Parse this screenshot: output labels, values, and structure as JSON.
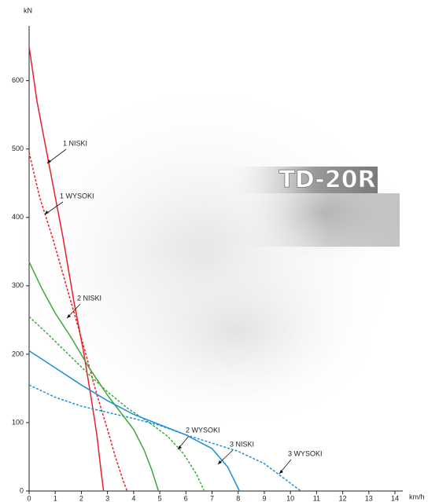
{
  "logo": "TD-20R",
  "chart_data": {
    "type": "line",
    "y_label": "kN",
    "x_label": "km/h",
    "xlim": [
      0,
      14.3
    ],
    "ylim": [
      0,
      680
    ],
    "xticks": [
      0,
      1,
      2,
      3,
      4,
      5,
      6,
      7,
      8,
      9,
      10,
      11,
      12,
      13,
      14
    ],
    "yticks": [
      0,
      100,
      200,
      300,
      400,
      500,
      600
    ],
    "series": [
      {
        "name": "1 NISKI",
        "color": "#e8202a",
        "dashed": false,
        "x": [
          0,
          0.3,
          0.8,
          1.3,
          1.7,
          2.1,
          2.4,
          2.6,
          2.75,
          2.85
        ],
        "values": [
          650,
          570,
          470,
          370,
          280,
          200,
          130,
          80,
          30,
          0
        ]
      },
      {
        "name": "1 WYSOKI",
        "color": "#e8202a",
        "dashed": true,
        "x": [
          0,
          0.4,
          0.9,
          1.5,
          2.1,
          2.6,
          3.0,
          3.3,
          3.6,
          3.75
        ],
        "values": [
          495,
          430,
          370,
          290,
          210,
          140,
          90,
          50,
          15,
          0
        ]
      },
      {
        "name": "2 NISKI",
        "color": "#3aa935",
        "dashed": false,
        "x": [
          0,
          0.5,
          1,
          1.6,
          2.3,
          3,
          3.5,
          4,
          4.4,
          4.7,
          4.95
        ],
        "values": [
          335,
          295,
          260,
          225,
          180,
          140,
          115,
          90,
          60,
          30,
          0
        ]
      },
      {
        "name": "2 WYSOKI",
        "color": "#3aa935",
        "dashed": true,
        "x": [
          0,
          0.7,
          1.5,
          2.3,
          3,
          3.8,
          4.6,
          5.3,
          5.9,
          6.4,
          6.7
        ],
        "values": [
          255,
          230,
          200,
          170,
          145,
          120,
          100,
          80,
          55,
          25,
          0
        ]
      },
      {
        "name": "3 NISKI",
        "color": "#1a8fd8",
        "dashed": false,
        "x": [
          0,
          1,
          2,
          3,
          4,
          5,
          6,
          7,
          7.6,
          8.05
        ],
        "values": [
          205,
          180,
          155,
          132,
          112,
          97,
          82,
          62,
          35,
          0
        ]
      },
      {
        "name": "3 WYSOKI",
        "color": "#1a8fd8",
        "dashed": true,
        "x": [
          0,
          1,
          2,
          3,
          4,
          5,
          6,
          7,
          8,
          9,
          9.7,
          10.4
        ],
        "values": [
          155,
          137,
          124,
          115,
          106,
          96,
          82,
          70,
          58,
          40,
          20,
          0
        ]
      }
    ]
  }
}
